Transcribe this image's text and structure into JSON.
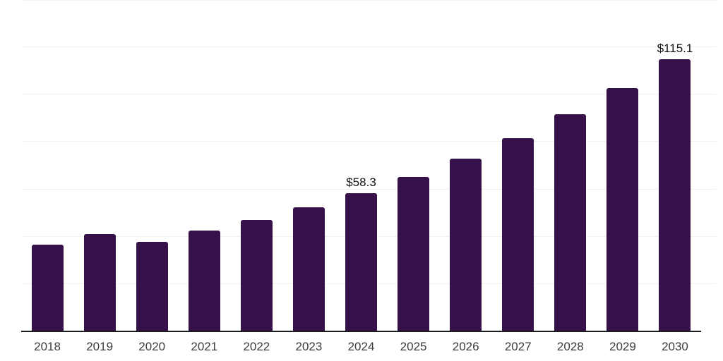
{
  "chart_data": {
    "type": "bar",
    "categories": [
      "2018",
      "2019",
      "2020",
      "2021",
      "2022",
      "2023",
      "2024",
      "2025",
      "2026",
      "2027",
      "2028",
      "2029",
      "2030"
    ],
    "values": [
      36.8,
      41.0,
      37.8,
      42.6,
      47.2,
      52.5,
      58.3,
      65.2,
      73.0,
      81.6,
      91.7,
      102.8,
      115.1
    ],
    "data_labels": [
      null,
      null,
      null,
      null,
      null,
      null,
      "$58.3",
      null,
      null,
      null,
      null,
      null,
      "$115.1"
    ],
    "ylim": [
      0,
      140
    ],
    "gridline_step": 20,
    "grid": true,
    "legend": false,
    "y_axis_tick_labels_visible": false,
    "colors": {
      "bar": "#351049",
      "gridline": "#f1f1f4",
      "axis_line": "#1c1c1c",
      "tick_label": "#3c3c3c",
      "data_label": "#121212",
      "background": "#ffffff"
    }
  }
}
